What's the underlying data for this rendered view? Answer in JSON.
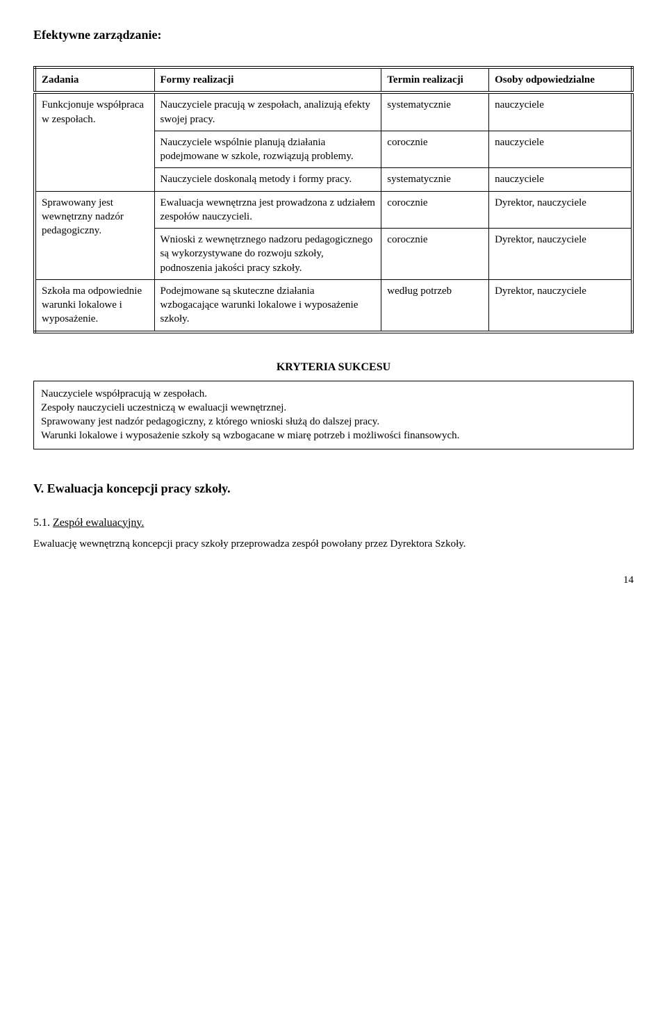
{
  "heading": "Efektywne zarządzanie:",
  "table": {
    "headers": {
      "c1": "Zadania",
      "c2": "Formy realizacji",
      "c3": "Termin realizacji",
      "c4": "Osoby odpowiedzialne"
    },
    "rows": [
      {
        "c1": "Funkcjonuje współpraca w zespołach.",
        "c2": "Nauczyciele pracują w zespołach, analizują efekty swojej pracy.",
        "c3": "systematycznie",
        "c4": "nauczyciele"
      },
      {
        "c1": "",
        "c2": "Nauczyciele wspólnie planują działania podejmowane w szkole, rozwiązują problemy.",
        "c3": "corocznie",
        "c4": "nauczyciele"
      },
      {
        "c1": "",
        "c2": "Nauczyciele doskonalą metody i formy pracy.",
        "c3": "systematycznie",
        "c4": "nauczyciele"
      },
      {
        "c1": "Sprawowany jest wewnętrzny nadzór pedagogiczny.",
        "c2": "Ewaluacja wewnętrzna jest prowadzona z udziałem zespołów nauczycieli.",
        "c3": "corocznie",
        "c4": "Dyrektor, nauczyciele"
      },
      {
        "c1": "",
        "c2": "Wnioski z wewnętrznego nadzoru pedagogicznego są wykorzystywane do rozwoju szkoły, podnoszenia jakości pracy szkoły.",
        "c3": "corocznie",
        "c4": "Dyrektor, nauczyciele"
      },
      {
        "c1": "Szkoła ma odpowiednie warunki lokalowe i wyposażenie.",
        "c2": "Podejmowane są skuteczne działania wzbogacające warunki lokalowe i wyposażenie szkoły.",
        "c3": "według potrzeb",
        "c4": "Dyrektor, nauczyciele"
      }
    ]
  },
  "kryteria": {
    "heading": "KRYTERIA SUKCESU",
    "body": "Nauczyciele współpracują w zespołach.\nZespoły nauczycieli uczestniczą w ewaluacji wewnętrznej.\nSprawowany jest nadzór pedagogiczny, z którego wnioski służą do dalszej pracy.\nWarunki lokalowe i wyposażenie szkoły są wzbogacane w miarę potrzeb i możliwości finansowych."
  },
  "sectionV": {
    "title": "V. Ewaluacja koncepcji pracy szkoły.",
    "sub_number": "5.1.",
    "sub_label": "Zespół ewaluacyjny.",
    "sub_text": "Ewaluację wewnętrzną  koncepcji pracy szkoły przeprowadza  zespół powołany przez Dyrektora Szkoły."
  },
  "page_number": "14"
}
